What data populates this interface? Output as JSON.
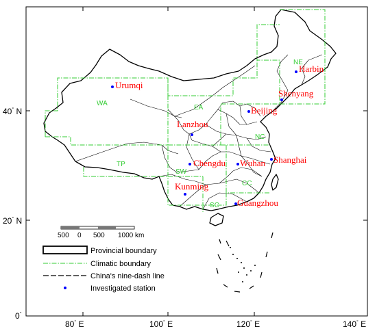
{
  "axes": {
    "x_ticks": [
      {
        "deg": "80",
        "sup": "°",
        "dir": " E"
      },
      {
        "deg": "100",
        "sup": "°",
        "dir": " E"
      },
      {
        "deg": "120",
        "sup": "°",
        "dir": " E"
      },
      {
        "deg": "140",
        "sup": "°",
        "dir": " E"
      }
    ],
    "y_ticks": [
      {
        "deg": "40",
        "sup": "°",
        "dir": " N"
      },
      {
        "deg": "20",
        "sup": "°",
        "dir": " N"
      },
      {
        "deg": "0",
        "sup": "°",
        "dir": ""
      }
    ]
  },
  "stations": [
    {
      "name": "Harbin",
      "lon": 126.6,
      "lat": 45.8
    },
    {
      "name": "Urumqi",
      "lon": 87.6,
      "lat": 43.8
    },
    {
      "name": "Shenyang",
      "lon": 123.4,
      "lat": 41.8
    },
    {
      "name": "Beijing",
      "lon": 116.4,
      "lat": 39.9
    },
    {
      "name": "Lanzhou",
      "lon": 103.8,
      "lat": 36.1
    },
    {
      "name": "Chengdu",
      "lon": 104.1,
      "lat": 30.7
    },
    {
      "name": "Wuhan",
      "lon": 114.3,
      "lat": 30.6
    },
    {
      "name": "Shanghai",
      "lon": 121.5,
      "lat": 31.2
    },
    {
      "name": "Kunming",
      "lon": 102.7,
      "lat": 25.0
    },
    {
      "name": "Guangzhou",
      "lon": 113.3,
      "lat": 23.1
    }
  ],
  "regions": [
    "NE",
    "WA",
    "EA",
    "NC",
    "TP",
    "SW",
    "CC",
    "SC"
  ],
  "scale_bar": {
    "labels": [
      "500",
      "0",
      "500",
      "1000 km"
    ]
  },
  "legend": {
    "provincial": "Provincial boundary",
    "climatic": "Climatic boundary",
    "nine_dash": "China's nine-dash line",
    "station": "Investigated station"
  },
  "colors": {
    "station": "#0000ff",
    "city_label": "#ff0000",
    "climatic_boundary": "#33cc33",
    "boundary": "#000000"
  }
}
